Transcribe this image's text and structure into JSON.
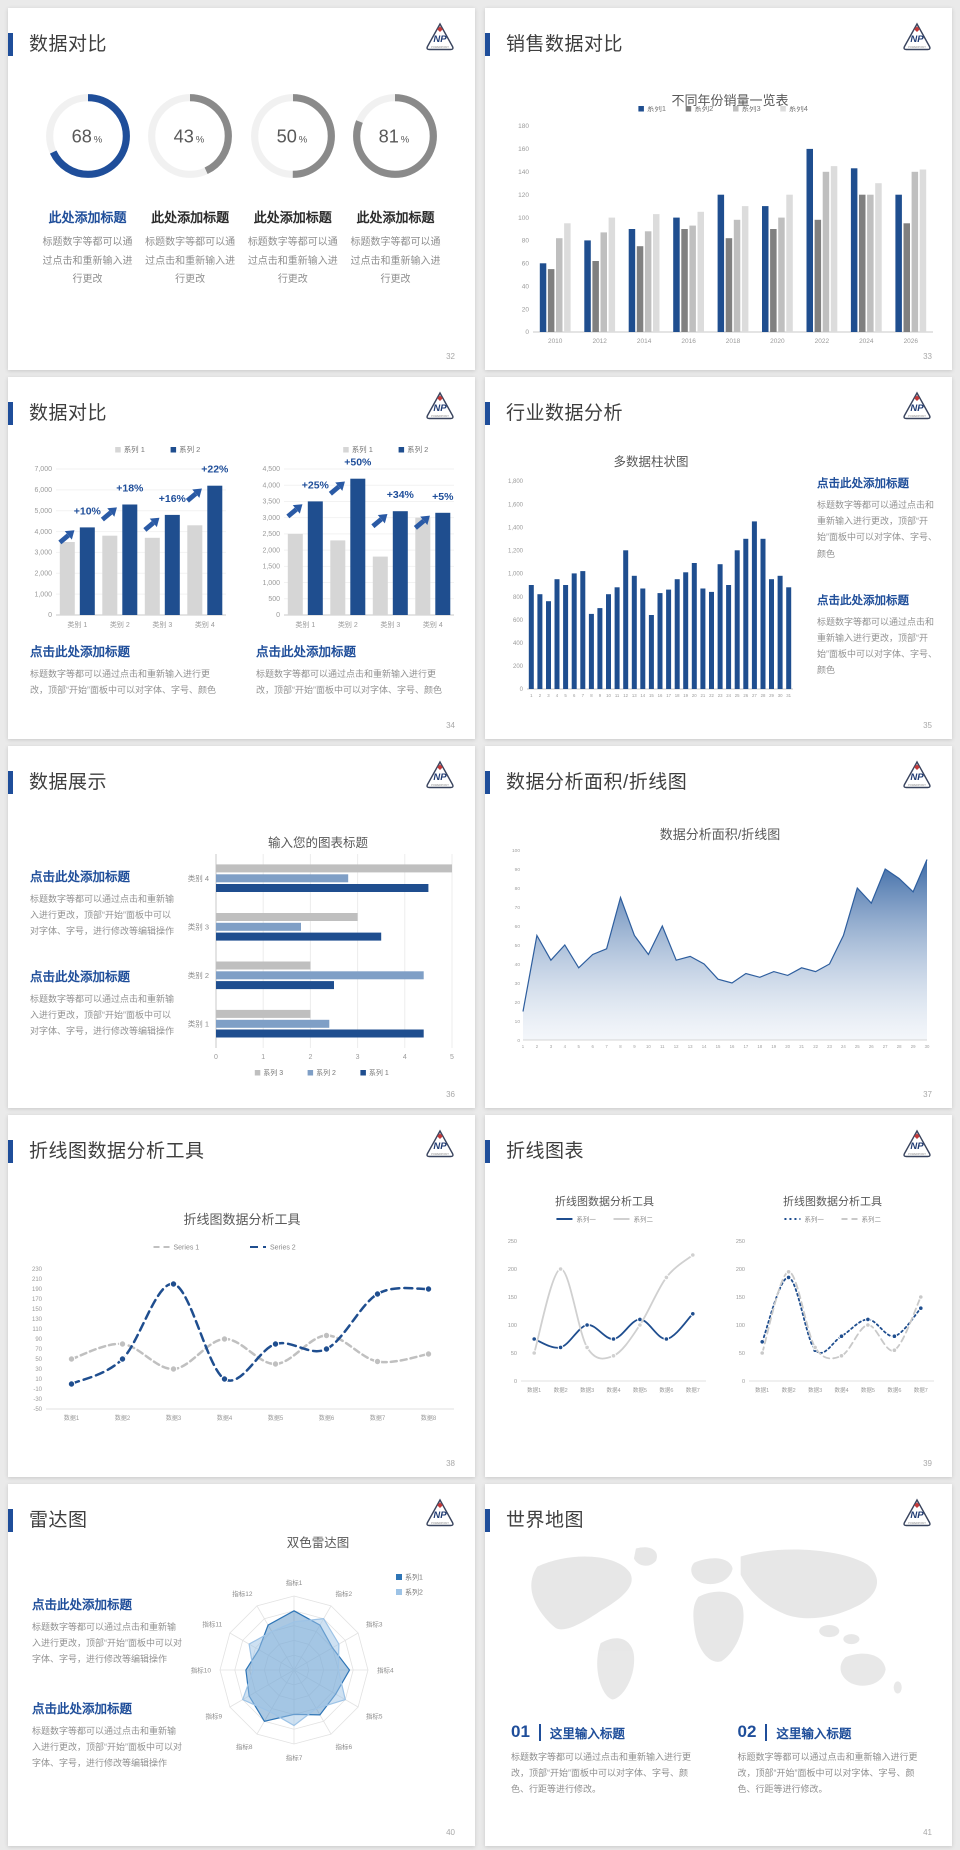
{
  "colors": {
    "accent": "#1f4e9a",
    "bar_blue": "#1f4e8f",
    "bar_gray": "#bfbfbf",
    "text_gray": "#8f8f8f"
  },
  "logo": {
    "text": "NP",
    "sub": "POWERPOINT"
  },
  "chart_data": [
    {
      "type": "bar",
      "title": "不同年份销量一览表",
      "categories": [
        "2010",
        "2012",
        "2014",
        "2016",
        "2018",
        "2020",
        "2022",
        "2024",
        "2026"
      ],
      "series": [
        {
          "name": "系列1",
          "color": "#1f4e8f",
          "values": [
            60,
            80,
            90,
            100,
            120,
            110,
            160,
            143,
            120
          ]
        },
        {
          "name": "系列2",
          "color": "#808080",
          "values": [
            55,
            62,
            75,
            90,
            82,
            90,
            98,
            120,
            95
          ]
        },
        {
          "name": "系列3",
          "color": "#bfbfbf",
          "values": [
            82,
            87,
            88,
            93,
            98,
            100,
            140,
            120,
            140
          ]
        },
        {
          "name": "系列4",
          "color": "#dcdcdc",
          "values": [
            95,
            100,
            103,
            105,
            110,
            120,
            145,
            130,
            142
          ]
        }
      ],
      "ylim": [
        0,
        180
      ],
      "ystep": 20
    },
    {
      "type": "bar",
      "title": "",
      "categories": [
        "类别 1",
        "类别 2",
        "类别 3",
        "类别 4"
      ],
      "series": [
        {
          "name": "系列 1",
          "color": "#d6d6d6",
          "values": [
            3500,
            3800,
            3700,
            4300
          ]
        },
        {
          "name": "系列 2",
          "color": "#1f4e8f",
          "values": [
            4200,
            5300,
            4800,
            6200
          ]
        }
      ],
      "ylim": [
        0,
        7000
      ],
      "ystep": 1000,
      "labels": [
        "+10%",
        "+18%",
        "+16%",
        "+22%"
      ]
    },
    {
      "type": "bar",
      "title": "",
      "categories": [
        "类别 1",
        "类别 2",
        "类别 3",
        "类别 4"
      ],
      "series": [
        {
          "name": "系列 1",
          "color": "#d6d6d6",
          "values": [
            2500,
            2300,
            1800,
            3000
          ]
        },
        {
          "name": "系列 2",
          "color": "#1f4e8f",
          "values": [
            3500,
            4200,
            3200,
            3150
          ]
        }
      ],
      "ylim": [
        0,
        4500
      ],
      "ystep": 500,
      "labels": [
        "+25%",
        "+50%",
        "+34%",
        "+5%"
      ]
    },
    {
      "type": "bar",
      "title": "多数据柱状图",
      "categories": [
        "1",
        "2",
        "3",
        "4",
        "5",
        "6",
        "7",
        "8",
        "9",
        "10",
        "11",
        "12",
        "13",
        "14",
        "15",
        "16",
        "17",
        "18",
        "19",
        "20",
        "21",
        "22",
        "23",
        "24",
        "25",
        "26",
        "27",
        "28",
        "29",
        "30",
        "31"
      ],
      "series": [
        {
          "name": "数据",
          "color": "#1f4e8f",
          "values": [
            900,
            820,
            760,
            950,
            900,
            1000,
            1020,
            650,
            700,
            820,
            880,
            1200,
            980,
            870,
            640,
            830,
            860,
            950,
            1010,
            1090,
            870,
            840,
            1080,
            900,
            1200,
            1300,
            1450,
            1300,
            950,
            980,
            880
          ]
        }
      ],
      "ylim": [
        0,
        1800
      ],
      "ystep": 200
    },
    {
      "type": "bar",
      "horizontal": true,
      "title": "输入您的图表标题",
      "categories": [
        "类别 4",
        "类别 3",
        "类别 2",
        "类别 1"
      ],
      "series": [
        {
          "name": "系列 3",
          "color": "#bfbfbf",
          "values": [
            5.0,
            3.0,
            2.0,
            2.0
          ]
        },
        {
          "name": "系列 2",
          "color": "#7f9fc6",
          "values": [
            2.8,
            1.8,
            4.4,
            2.4
          ]
        },
        {
          "name": "系列 1",
          "color": "#1f4e8f",
          "values": [
            4.5,
            3.5,
            2.5,
            4.4
          ]
        }
      ],
      "xlim": [
        0,
        5
      ],
      "xstep": 1
    },
    {
      "type": "area",
      "title": "数据分析面积/折线图",
      "x": [
        "1",
        "2",
        "3",
        "4",
        "5",
        "6",
        "7",
        "8",
        "9",
        "10",
        "11",
        "12",
        "13",
        "14",
        "15",
        "16",
        "17",
        "18",
        "19",
        "20",
        "21",
        "22",
        "23",
        "24",
        "25",
        "26",
        "27",
        "28",
        "29",
        "30"
      ],
      "values": [
        15,
        55,
        42,
        50,
        38,
        45,
        48,
        75,
        55,
        45,
        60,
        42,
        44,
        40,
        32,
        30,
        35,
        33,
        36,
        34,
        38,
        36,
        40,
        55,
        80,
        72,
        90,
        85,
        78,
        95
      ],
      "ylim": [
        0,
        100
      ],
      "ystep": 10,
      "line_color": "#2e5e9e",
      "fill_top": "#3c6aa6",
      "fill_bottom": "#dfe7f2"
    },
    {
      "type": "line",
      "title": "折线图数据分析工具",
      "categories": [
        "数据1",
        "数据2",
        "数据3",
        "数据4",
        "数据5",
        "数据6",
        "数据7",
        "数据8"
      ],
      "series": [
        {
          "name": "Series 1",
          "color": "#c0c0c0",
          "dash": "6 4",
          "values": [
            50,
            80,
            30,
            90,
            40,
            97,
            45,
            60
          ]
        },
        {
          "name": "Series 2",
          "color": "#1f4e8f",
          "dash": "8 5",
          "values": [
            0,
            50,
            200,
            10,
            80,
            70,
            180,
            190
          ]
        }
      ],
      "ylim": [
        -50,
        230
      ],
      "ystep": 20
    },
    {
      "type": "line",
      "title": "折线图数据分析工具",
      "categories": [
        "数据1",
        "数据2",
        "数据3",
        "数据4",
        "数据5",
        "数据6",
        "数据7"
      ],
      "series": [
        {
          "name": "系列一",
          "color": "#1f4e8f",
          "dash": "",
          "values": [
            75,
            60,
            100,
            75,
            110,
            75,
            120
          ]
        },
        {
          "name": "系列二",
          "color": "#d0d0d0",
          "dash": "",
          "values": [
            50,
            200,
            60,
            45,
            100,
            185,
            225
          ]
        }
      ],
      "ylim": [
        0,
        250
      ],
      "ystep": 50
    },
    {
      "type": "line",
      "title": "折线图数据分析工具",
      "categories": [
        "数据1",
        "数据2",
        "数据3",
        "数据4",
        "数据5",
        "数据6",
        "数据7"
      ],
      "series": [
        {
          "name": "系列一",
          "color": "#1f4e8f",
          "dash": "2 3",
          "values": [
            70,
            185,
            55,
            80,
            110,
            80,
            130
          ]
        },
        {
          "name": "系列二",
          "color": "#c9c9c9",
          "dash": "6 4",
          "values": [
            50,
            195,
            60,
            45,
            100,
            55,
            150
          ]
        }
      ],
      "ylim": [
        0,
        250
      ],
      "ystep": 50
    },
    {
      "type": "radar",
      "title": "双色雷达图",
      "max": 100,
      "axes": [
        "指标1",
        "指标2",
        "指标3",
        "指标4",
        "指标5",
        "指标6",
        "指标7",
        "指标8",
        "指标9",
        "指标10",
        "指标11",
        "指标12"
      ],
      "series": [
        {
          "name": "系列1",
          "color": "#2e75b6",
          "values": [
            80,
            70,
            60,
            75,
            65,
            70,
            60,
            80,
            70,
            65,
            55,
            70
          ]
        },
        {
          "name": "系列2",
          "color": "#9dc3e6",
          "values": [
            65,
            80,
            70,
            60,
            80,
            60,
            75,
            65,
            80,
            55,
            70,
            60
          ]
        }
      ]
    }
  ],
  "slides": [
    {
      "title": "数据对比",
      "page": "32",
      "donuts": [
        {
          "value": 68,
          "unit": "%",
          "label": "此处添加标题",
          "desc": "标题数字等都可以通过点击和重新输入进行更改",
          "color": "#1f4e9a"
        },
        {
          "value": 43,
          "unit": "%",
          "label": "此处添加标题",
          "desc": "标题数字等都可以通过点击和重新输入进行更改",
          "color": "#8a8a8a"
        },
        {
          "value": 50,
          "unit": "%",
          "label": "此处添加标题",
          "desc": "标题数字等都可以通过点击和重新输入进行更改",
          "color": "#8a8a8a"
        },
        {
          "value": 81,
          "unit": "%",
          "label": "此处添加标题",
          "desc": "标题数字等都可以通过点击和重新输入进行更改",
          "color": "#8a8a8a"
        }
      ]
    },
    {
      "title": "销售数据对比",
      "page": "33"
    },
    {
      "title": "数据对比",
      "page": "34",
      "blocks": [
        {
          "heading": "点击此处添加标题",
          "desc": "标题数字等都可以通过点击和重新输入进行更改，顶部“开始”面板中可以对字体、字号、颜色"
        },
        {
          "heading": "点击此处添加标题",
          "desc": "标题数字等都可以通过点击和重新输入进行更改，顶部“开始”面板中可以对字体、字号、颜色"
        }
      ]
    },
    {
      "title": "行业数据分析",
      "page": "35",
      "blocks": [
        {
          "heading": "点击此处添加标题",
          "desc": "标题数字等都可以通过点击和重新输入进行更改，顶部“开始”面板中可以对字体、字号、颜色"
        },
        {
          "heading": "点击此处添加标题",
          "desc": "标题数字等都可以通过点击和重新输入进行更改，顶部“开始”面板中可以对字体、字号、颜色"
        }
      ]
    },
    {
      "title": "数据展示",
      "page": "36",
      "blocks": [
        {
          "heading": "点击此处添加标题",
          "desc": "标题数字等都可以通过点击和重新输入进行更改，顶部“开始”面板中可以对字体、字号，进行修改等编辑操作"
        },
        {
          "heading": "点击此处添加标题",
          "desc": "标题数字等都可以通过点击和重新输入进行更改，顶部“开始”面板中可以对字体、字号，进行修改等编辑操作"
        }
      ]
    },
    {
      "title": "数据分析面积/折线图",
      "page": "37"
    },
    {
      "title": "折线图数据分析工具",
      "page": "38"
    },
    {
      "title": "折线图表",
      "page": "39"
    },
    {
      "title": "雷达图",
      "page": "40",
      "blocks": [
        {
          "heading": "点击此处添加标题",
          "desc": "标题数字等都可以通过点击和重新输入进行更改，顶部“开始”面板中可以对字体、字号，进行修改等编辑操作"
        },
        {
          "heading": "点击此处添加标题",
          "desc": "标题数字等都可以通过点击和重新输入进行更改，顶部“开始”面板中可以对字体、字号，进行修改等编辑操作"
        }
      ]
    },
    {
      "title": "世界地图",
      "page": "41",
      "items": [
        {
          "num": "01",
          "heading": "这里输入标题",
          "desc": "标题数字等都可以通过点击和重新输入进行更改，顶部“开始”面板中可以对字体、字号、颜色、行距等进行修改。"
        },
        {
          "num": "02",
          "heading": "这里输入标题",
          "desc": "标题数字等都可以通过点击和重新输入进行更改，顶部“开始”面板中可以对字体、字号、颜色、行距等进行修改。"
        }
      ]
    }
  ]
}
